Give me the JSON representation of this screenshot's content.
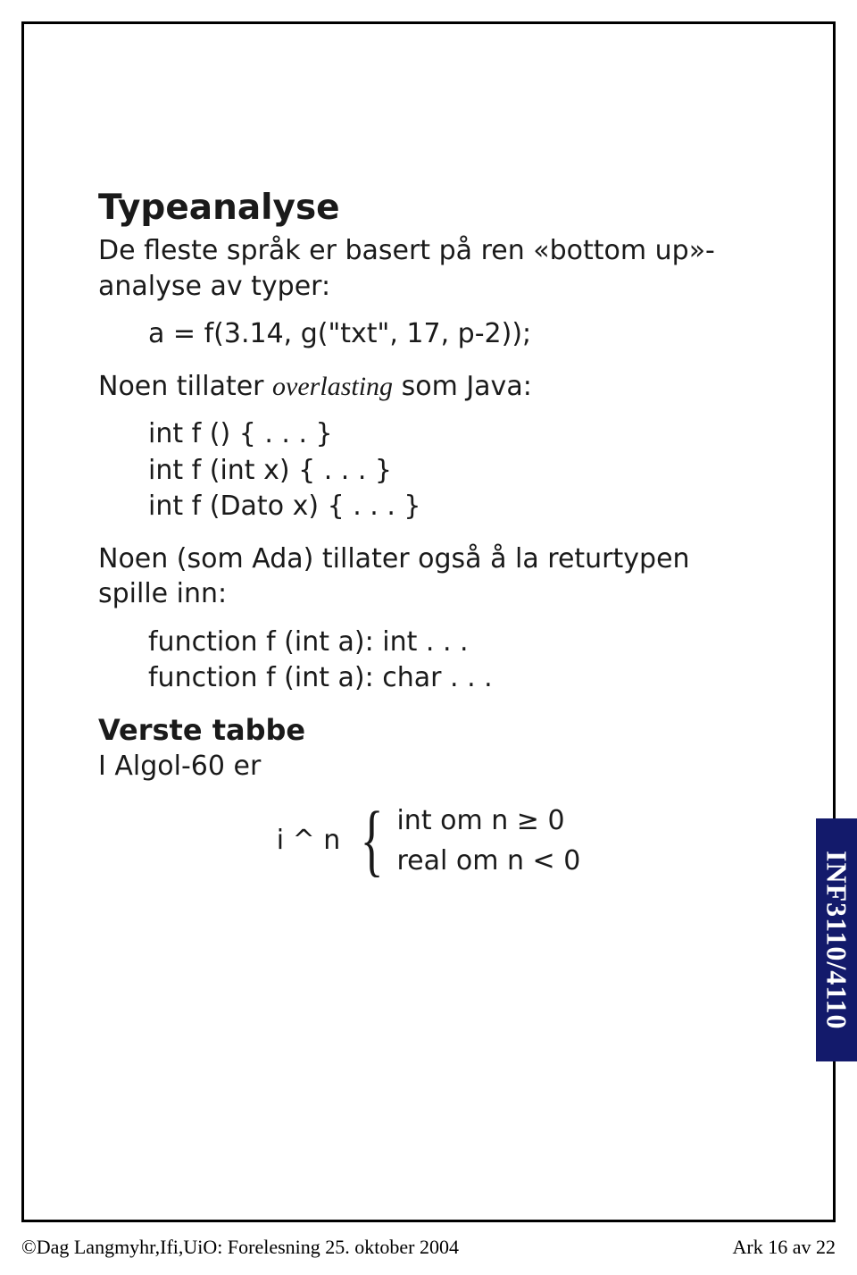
{
  "colors": {
    "page_bg": "#ffffff",
    "frame_border": "#000000",
    "text": "#1a1a1a",
    "sidebar_bg": "#131a6b",
    "sidebar_text": "#ffffff"
  },
  "typography": {
    "body_font": "Lucida Sans",
    "heading_font": "Lucida Sans",
    "footer_font": "Times New Roman",
    "h1_size_pt": 29,
    "h2_size_pt": 24,
    "body_size_pt": 22,
    "footer_size_pt": 16
  },
  "heading": "Typeanalyse",
  "para1_a": "De fleste språk er basert på ren «bottom up»-analyse av typer:",
  "code1": "a = f(3.14, g(\"txt\", 17, p-2));",
  "para2_a": "Noen tillater ",
  "para2_i": "overlasting",
  "para2_b": " som Java:",
  "code2": "int f () { . . . }\nint f (int x) { . . . }\nint f (Dato x) { . . . }",
  "para3": "Noen (som Ada) tillater også å la returtypen spille inn:",
  "code3": "function f (int a): int . . .\nfunction f (int a): char . . .",
  "subheading": "Verste tabbe",
  "para4": "I Algol-60 er",
  "math": {
    "lhs": "i ^ n",
    "case1": "int om n ≥ 0",
    "case2": "real om n < 0"
  },
  "sidebar": "INF3110/4110",
  "footer_left": "©Dag Langmyhr,Ifi,UiO: Forelesning 25. oktober 2004",
  "footer_right": "Ark 16 av 22"
}
